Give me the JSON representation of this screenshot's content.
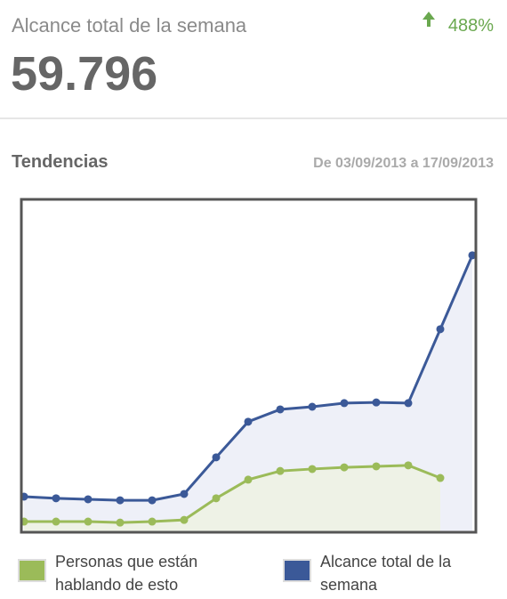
{
  "header": {
    "title": "Alcance total de la semana",
    "value": "59.796",
    "change": "488%"
  },
  "section": {
    "title": "Tendencias",
    "date_range": "De 03/09/2013 a 17/09/2013"
  },
  "chart_data": {
    "type": "line",
    "ylim": [
      0,
      100
    ],
    "x": [
      0,
      1,
      2,
      3,
      4,
      5,
      6,
      7,
      8,
      9,
      10,
      11,
      12,
      13,
      14
    ],
    "xlim": [
      0,
      14
    ],
    "series": [
      {
        "name": "Personas que están hablando de esto",
        "color": "#9bbb59",
        "area_color": "#eef2e6",
        "values": [
          3.2,
          3.2,
          3.2,
          2.9,
          3.2,
          3.7,
          10.2,
          15.8,
          18.4,
          19.0,
          19.5,
          19.8,
          20.1,
          16.3,
          null
        ]
      },
      {
        "name": "Alcance total de la semana",
        "color": "#3b5998",
        "area_color": "#eef0f8",
        "values": [
          10.7,
          10.2,
          9.9,
          9.6,
          9.6,
          11.5,
          22.5,
          33.2,
          36.9,
          37.7,
          38.8,
          39.0,
          38.8,
          61.0,
          83.2
        ]
      }
    ]
  }
}
